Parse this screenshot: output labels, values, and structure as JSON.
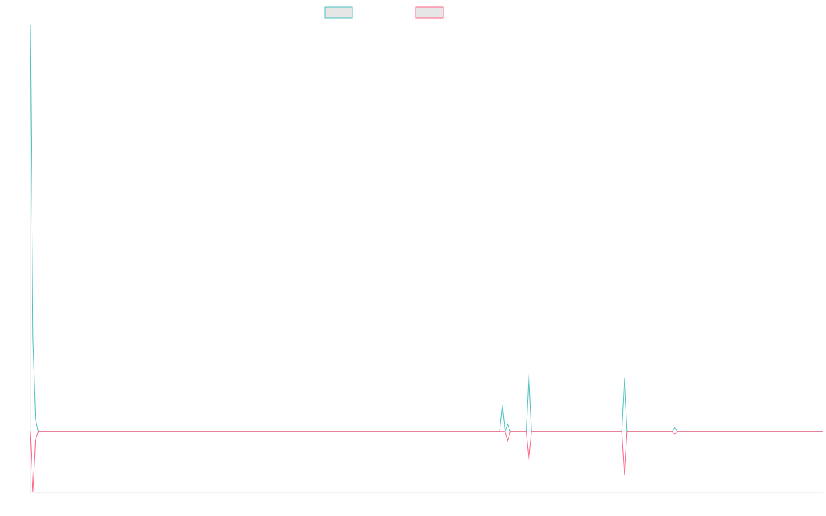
{
  "chart_data": {
    "type": "line",
    "x_count": 300,
    "ylim": [
      -0.15,
      1.0
    ],
    "grid": false,
    "legend_position": "top-center",
    "series": [
      {
        "color": "#4bc0c0",
        "points": [
          [
            0,
            1.0
          ],
          [
            1,
            0.23
          ],
          [
            2,
            0.031
          ],
          [
            3,
            0
          ],
          [
            177,
            0
          ],
          [
            178,
            0.065
          ],
          [
            179,
            0
          ],
          [
            180,
            0.018
          ],
          [
            181,
            0
          ],
          [
            187,
            0
          ],
          [
            188,
            0.141
          ],
          [
            189,
            0
          ],
          [
            223,
            0
          ],
          [
            224,
            0.131
          ],
          [
            225,
            0
          ],
          [
            242,
            0
          ],
          [
            243,
            0.011
          ],
          [
            244,
            0
          ],
          [
            299,
            0
          ]
        ]
      },
      {
        "color": "#ff6384",
        "points": [
          [
            0,
            0
          ],
          [
            1,
            -0.148
          ],
          [
            2,
            -0.02
          ],
          [
            3,
            0
          ],
          [
            177,
            0
          ],
          [
            178,
            0
          ],
          [
            179,
            0
          ],
          [
            180,
            -0.022
          ],
          [
            181,
            0
          ],
          [
            187,
            0
          ],
          [
            188,
            -0.07
          ],
          [
            189,
            0
          ],
          [
            223,
            0
          ],
          [
            224,
            -0.108
          ],
          [
            225,
            0
          ],
          [
            242,
            0
          ],
          [
            243,
            -0.007
          ],
          [
            244,
            0
          ],
          [
            299,
            0
          ]
        ]
      }
    ]
  }
}
